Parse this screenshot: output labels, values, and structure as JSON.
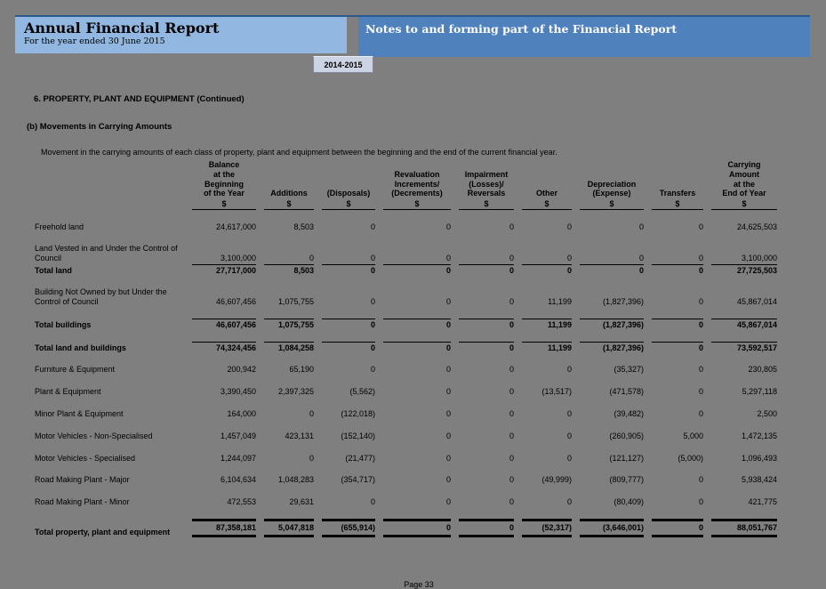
{
  "header": {
    "title": "Annual Financial Report",
    "subtitle": "For the year ended 30 June 2015",
    "right_title": "Notes to and forming part of the Financial Report",
    "tab_label": "2014-2015"
  },
  "colors": {
    "page_background": "#7f7f7f",
    "header_left_bg": "#92b7e0",
    "header_right_bg": "#4f81bd",
    "accent_rule": "#2a5b8c",
    "tab_bg": "#ccd3e3"
  },
  "section": {
    "heading": "6. PROPERTY, PLANT AND EQUIPMENT (Continued)",
    "subheading": "(b) Movements in Carrying Amounts",
    "description": "Movement in the carrying amounts of each class of property, plant and equipment between the beginning and the end of the current financial year."
  },
  "table": {
    "columns": [
      {
        "label": "Balance\nat the\nBeginning\nof the Year",
        "unit": "$"
      },
      {
        "label": "Additions",
        "unit": "$"
      },
      {
        "label": "(Disposals)",
        "unit": "$"
      },
      {
        "label": "Revaluation\nIncrements/\n(Decrements)",
        "unit": "$"
      },
      {
        "label": "Impairment\n(Losses)/\nReversals",
        "unit": "$"
      },
      {
        "label": "Other",
        "unit": "$"
      },
      {
        "label": "Depreciation\n(Expense)",
        "unit": "$"
      },
      {
        "label": "Transfers",
        "unit": "$"
      },
      {
        "label": "Carrying\nAmount\nat the\nEnd of Year",
        "unit": "$"
      }
    ],
    "rows": [
      {
        "label": "Freehold land",
        "style": "normal",
        "values": [
          "24,617,000",
          "8,503",
          "0",
          "0",
          "0",
          "0",
          "0",
          "0",
          "24,625,503"
        ]
      },
      {
        "label": "Land Vested in and Under the Control of Council",
        "style": "normal",
        "values": [
          "3,100,000",
          "0",
          "0",
          "0",
          "0",
          "0",
          "0",
          "0",
          "3,100,000"
        ]
      },
      {
        "label": "Total land",
        "style": "subtotal-tight",
        "values": [
          "27,717,000",
          "8,503",
          "0",
          "0",
          "0",
          "0",
          "0",
          "0",
          "27,725,503"
        ]
      },
      {
        "label": "Building Not Owned by but Under the Control of Council",
        "style": "normal",
        "values": [
          "46,607,456",
          "1,075,755",
          "0",
          "0",
          "0",
          "11,199",
          "(1,827,396)",
          "0",
          "45,867,014"
        ]
      },
      {
        "label": "Total buildings",
        "style": "subtotal",
        "values": [
          "46,607,456",
          "1,075,755",
          "0",
          "0",
          "0",
          "11,199",
          "(1,827,396)",
          "0",
          "45,867,014"
        ]
      },
      {
        "label": "Total land and buildings",
        "style": "subtotal",
        "values": [
          "74,324,456",
          "1,084,258",
          "0",
          "0",
          "0",
          "11,199",
          "(1,827,396)",
          "0",
          "73,592,517"
        ]
      },
      {
        "label": "Furniture & Equipment",
        "style": "normal",
        "values": [
          "200,942",
          "65,190",
          "0",
          "0",
          "0",
          "0",
          "(35,327)",
          "0",
          "230,805"
        ]
      },
      {
        "label": "Plant & Equipment",
        "style": "normal",
        "values": [
          "3,390,450",
          "2,397,325",
          "(5,562)",
          "0",
          "0",
          "(13,517)",
          "(471,578)",
          "0",
          "5,297,118"
        ]
      },
      {
        "label": "Minor Plant & Equipment",
        "style": "normal",
        "values": [
          "164,000",
          "0",
          "(122,018)",
          "0",
          "0",
          "0",
          "(39,482)",
          "0",
          "2,500"
        ]
      },
      {
        "label": "Motor Vehicles - Non-Specialised",
        "style": "normal",
        "values": [
          "1,457,049",
          "423,131",
          "(152,140)",
          "0",
          "0",
          "0",
          "(260,905)",
          "5,000",
          "1,472,135"
        ]
      },
      {
        "label": "Motor Vehicles - Specialised",
        "style": "normal",
        "values": [
          "1,244,097",
          "0",
          "(21,477)",
          "0",
          "0",
          "0",
          "(121,127)",
          "(5,000)",
          "1,096,493"
        ]
      },
      {
        "label": "Road Making Plant - Major",
        "style": "normal",
        "values": [
          "6,104,634",
          "1,048,283",
          "(354,717)",
          "0",
          "0",
          "(49,999)",
          "(809,777)",
          "0",
          "5,938,424"
        ]
      },
      {
        "label": "Road Making Plant - Minor",
        "style": "normal",
        "values": [
          "472,553",
          "29,631",
          "0",
          "0",
          "0",
          "0",
          "(80,409)",
          "0",
          "421,775"
        ]
      },
      {
        "label": "Total property, plant and equipment",
        "style": "grand",
        "values": [
          "87,358,181",
          "5,047,818",
          "(655,914)",
          "0",
          "0",
          "(52,317)",
          "(3,646,001)",
          "0",
          "88,051,767"
        ]
      }
    ]
  },
  "footer": {
    "page_label": "Page 33"
  }
}
